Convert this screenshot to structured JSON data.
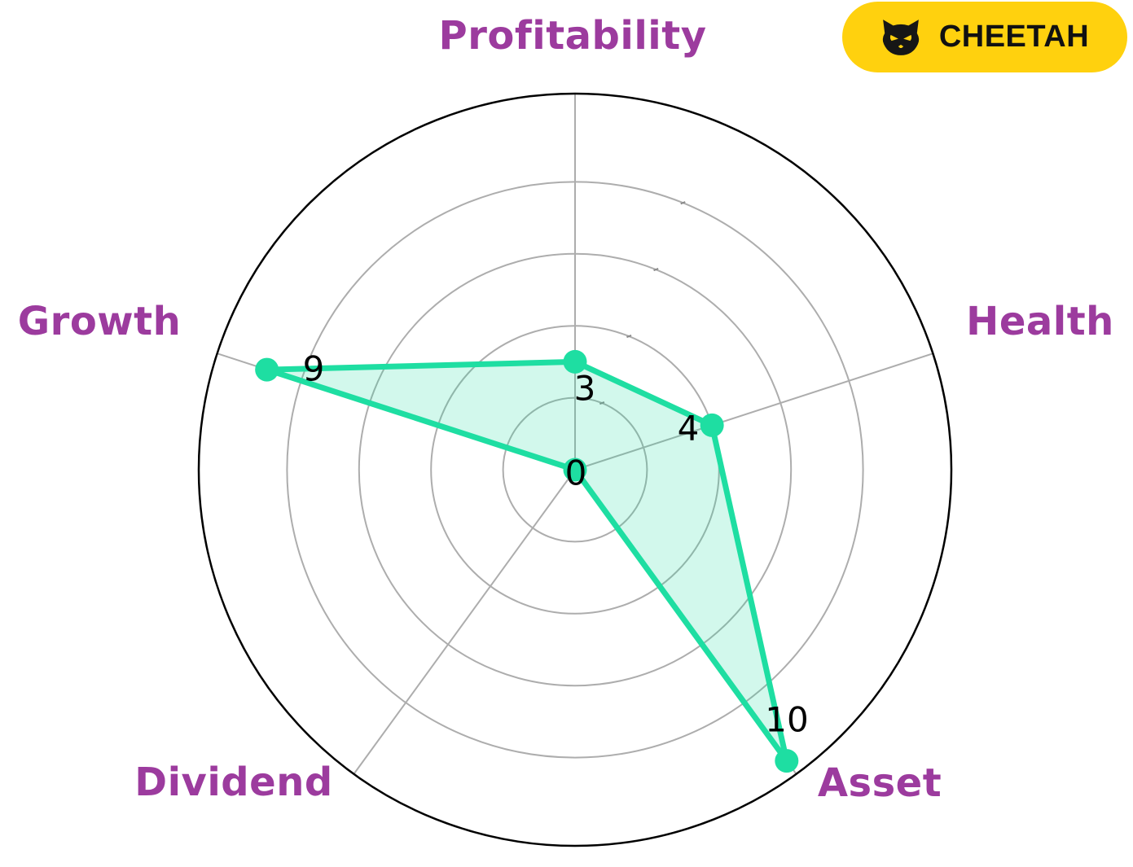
{
  "badge": {
    "label": "CHEETAH",
    "icon": "cat-face-icon",
    "background_color": "#FFD10E",
    "text_color": "#111111"
  },
  "chart_data": {
    "type": "radar",
    "categories": [
      "Profitability",
      "Health",
      "Asset",
      "Dividend",
      "Growth"
    ],
    "values": [
      3,
      4,
      10,
      0,
      9
    ],
    "axis_range": [
      0,
      10
    ],
    "ring_values": [
      2,
      4,
      6,
      8
    ],
    "grid": true,
    "legend": false,
    "category_label_color": "#9C3B9E",
    "series_color": "#1EDEA2",
    "fill_color": "rgba(30,222,162,0.2)",
    "grid_color": "#ADADAD",
    "outer_circle_color": "#000000",
    "value_label_color": "#000000"
  }
}
